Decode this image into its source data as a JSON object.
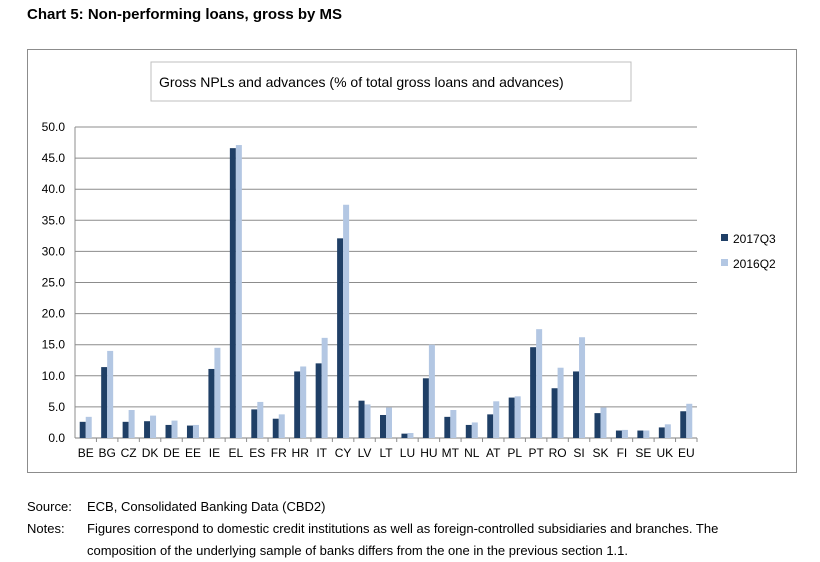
{
  "page_title": "Chart 5: Non-performing loans, gross by MS",
  "chart_data": {
    "type": "bar",
    "title": "Gross NPLs and advances (% of total gross loans and advances)",
    "xlabel": "",
    "ylabel": "",
    "ylim": [
      0,
      50
    ],
    "yticks": [
      "0.0",
      "5.0",
      "10.0",
      "15.0",
      "20.0",
      "25.0",
      "30.0",
      "35.0",
      "40.0",
      "45.0",
      "50.0"
    ],
    "grid": true,
    "legend_position": "right",
    "categories": [
      "BE",
      "BG",
      "CZ",
      "DK",
      "DE",
      "EE",
      "IE",
      "EL",
      "ES",
      "FR",
      "HR",
      "IT",
      "CY",
      "LV",
      "LT",
      "LU",
      "HU",
      "MT",
      "NL",
      "AT",
      "PL",
      "PT",
      "RO",
      "SI",
      "SK",
      "FI",
      "SE",
      "UK",
      "EU"
    ],
    "series": [
      {
        "name": "2017Q3",
        "color": "#1f3f66",
        "values": [
          2.6,
          11.4,
          2.6,
          2.7,
          2.1,
          2.0,
          11.1,
          46.6,
          4.6,
          3.1,
          10.7,
          12.0,
          32.1,
          6.0,
          3.7,
          0.7,
          9.6,
          3.4,
          2.1,
          3.8,
          6.5,
          14.6,
          8.0,
          10.7,
          4.0,
          1.2,
          1.2,
          1.7,
          4.3
        ]
      },
      {
        "name": "2016Q2",
        "color": "#b3c7e3",
        "values": [
          3.4,
          14.0,
          4.5,
          3.6,
          2.8,
          2.1,
          14.5,
          47.1,
          5.8,
          3.8,
          11.5,
          16.1,
          37.5,
          5.4,
          4.9,
          0.8,
          15.0,
          4.5,
          2.5,
          5.9,
          6.7,
          17.5,
          11.3,
          16.2,
          4.9,
          1.3,
          1.2,
          2.2,
          5.5
        ]
      }
    ]
  },
  "footer": {
    "source_label": "Source:",
    "source_text": "ECB, Consolidated Banking Data (CBD2)",
    "notes_label": "Notes:",
    "notes_text": "Figures correspond to domestic credit institutions as well as foreign-controlled subsidiaries and branches. The composition of the underlying sample of banks differs from the one in the previous section 1.1."
  }
}
